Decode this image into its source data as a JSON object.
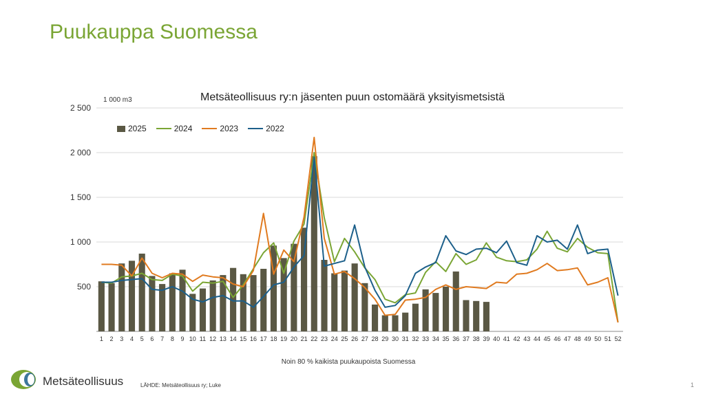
{
  "slide": {
    "title": "Puukauppa Suomessa",
    "footer_logo_text": "Metsäteollisuus",
    "source": "LÄHDE: Metsäteollisuus ry; Luke",
    "page_number": "1"
  },
  "colors": {
    "title": "#7aa534",
    "bar_2025": "#5a5844",
    "line_2024": "#7aa534",
    "line_2023": "#e07a1f",
    "line_2022": "#1c5f8a",
    "grid": "#d9d9d9"
  },
  "chart_data": {
    "type": "bar",
    "title": "Metsäteollisuus ry:n jäsenten puun ostomäärä yksityismetsistä",
    "unit_label": "1 000 m3",
    "xlabel": "Noin 80 % kaikista puukaupoista Suomessa",
    "ylim": [
      0,
      2500
    ],
    "yticks": [
      0,
      500,
      1000,
      1500,
      2000,
      2500
    ],
    "ytick_labels": [
      "",
      "500",
      "1 000",
      "1 500",
      "2 000",
      "2 500"
    ],
    "grid": true,
    "legend_position": "top-left",
    "categories": [
      "1",
      "2",
      "3",
      "4",
      "5",
      "6",
      "7",
      "8",
      "9",
      "10",
      "11",
      "12",
      "13",
      "14",
      "15",
      "16",
      "17",
      "18",
      "19",
      "20",
      "21",
      "22",
      "23",
      "24",
      "25",
      "26",
      "27",
      "28",
      "29",
      "30",
      "31",
      "32",
      "33",
      "34",
      "35",
      "36",
      "37",
      "38",
      "39",
      "40",
      "41",
      "42",
      "43",
      "44",
      "45",
      "46",
      "47",
      "48",
      "49",
      "50",
      "51",
      "52"
    ],
    "series": [
      {
        "name": "2025",
        "kind": "bar",
        "values": [
          560,
          540,
          760,
          790,
          870,
          620,
          530,
          650,
          690,
          420,
          480,
          570,
          630,
          710,
          640,
          630,
          700,
          960,
          820,
          980,
          1160,
          1960,
          800,
          650,
          680,
          760,
          540,
          300,
          180,
          180,
          210,
          310,
          470,
          430,
          500,
          670,
          350,
          340,
          330,
          null,
          null,
          null,
          null,
          null,
          null,
          null,
          null,
          null,
          null,
          null,
          null,
          null
        ]
      },
      {
        "name": "2024",
        "kind": "line",
        "values": [
          550,
          540,
          610,
          620,
          650,
          580,
          570,
          640,
          620,
          450,
          550,
          540,
          560,
          380,
          520,
          700,
          880,
          990,
          650,
          1010,
          1200,
          2000,
          1270,
          780,
          1040,
          890,
          710,
          580,
          360,
          320,
          410,
          430,
          660,
          780,
          670,
          870,
          750,
          800,
          990,
          830,
          790,
          780,
          800,
          920,
          1120,
          930,
          890,
          1040,
          940,
          880,
          870,
          100
        ]
      },
      {
        "name": "2023",
        "kind": "line",
        "values": [
          750,
          750,
          740,
          620,
          820,
          650,
          600,
          650,
          640,
          560,
          630,
          610,
          600,
          530,
          500,
          680,
          1320,
          640,
          910,
          780,
          1280,
          2170,
          1040,
          640,
          670,
          590,
          490,
          360,
          180,
          190,
          350,
          360,
          380,
          470,
          520,
          470,
          500,
          490,
          480,
          550,
          540,
          640,
          650,
          690,
          760,
          680,
          690,
          710,
          520,
          550,
          600,
          100
        ]
      },
      {
        "name": "2022",
        "kind": "line",
        "values": [
          550,
          550,
          570,
          580,
          590,
          470,
          460,
          500,
          450,
          360,
          330,
          380,
          400,
          340,
          340,
          270,
          390,
          520,
          550,
          720,
          850,
          1950,
          730,
          760,
          790,
          1190,
          720,
          460,
          270,
          290,
          400,
          650,
          720,
          770,
          1070,
          900,
          860,
          920,
          930,
          880,
          1010,
          770,
          740,
          1070,
          1000,
          1020,
          920,
          1190,
          870,
          910,
          920,
          400
        ]
      }
    ]
  }
}
